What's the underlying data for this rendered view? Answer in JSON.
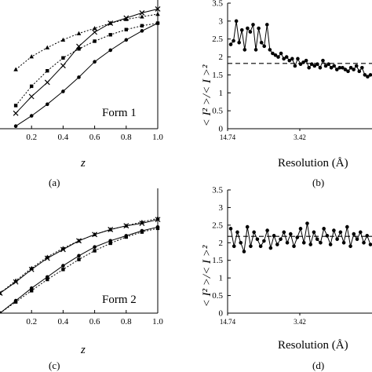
{
  "charts": {
    "a": {
      "panel_label": "(a)",
      "form_label": "Form 1",
      "xlabel": "z",
      "x_ticks": [
        "0.2",
        "0.4",
        "0.6",
        "0.8",
        "1.0"
      ],
      "x_tick_values": [
        0.2,
        0.4,
        0.6,
        0.8,
        1.0
      ]
    },
    "b": {
      "panel_label": "(b)",
      "ylabel": "< I² >/< I >²",
      "xlabel": "Resolution (Å)",
      "x_ticks": [
        "14.74",
        "3.42"
      ],
      "y_ticks": [
        "3.5",
        "3",
        "2.5",
        "2",
        "1.5",
        "1",
        "0.5",
        "0"
      ],
      "y_tick_values": [
        3.5,
        3,
        2.5,
        2,
        1.5,
        1,
        0.5,
        0
      ]
    },
    "c": {
      "panel_label": "(c)",
      "form_label": "Form 2",
      "xlabel": "z",
      "x_ticks": [
        "0.2",
        "0.4",
        "0.6",
        "0.8",
        "1.0"
      ],
      "x_tick_values": [
        0.2,
        0.4,
        0.6,
        0.8,
        1.0
      ]
    },
    "d": {
      "panel_label": "(d)",
      "ylabel": "< I² >/< I >²",
      "xlabel": "Resolution (Å)",
      "x_ticks": [
        "14.74",
        "3.42"
      ],
      "y_ticks": [
        "3.5",
        "3",
        "2.5",
        "2",
        "1.5",
        "1",
        "0.5",
        "0"
      ],
      "y_tick_values": [
        3.5,
        3,
        2.5,
        2,
        1.5,
        1,
        0.5,
        0
      ]
    }
  },
  "chart_data": [
    {
      "id": "a",
      "type": "line",
      "xlabel": "z",
      "xlim": [
        0.0,
        1.0
      ],
      "ylim": [
        0.0,
        1.0
      ],
      "series": [
        {
          "style": "solid-x",
          "marker": "cross",
          "x": [
            0.1,
            0.2,
            0.3,
            0.4,
            0.5,
            0.6,
            0.7,
            0.8,
            0.9,
            1.0
          ],
          "y": [
            0.12,
            0.25,
            0.36,
            0.49,
            0.64,
            0.75,
            0.82,
            0.86,
            0.9,
            0.93
          ]
        },
        {
          "style": "dotted-triangle",
          "marker": "triangle",
          "x": [
            0.1,
            0.2,
            0.3,
            0.4,
            0.5,
            0.6,
            0.7,
            0.8,
            0.9,
            1.0
          ],
          "y": [
            0.46,
            0.56,
            0.63,
            0.69,
            0.74,
            0.78,
            0.82,
            0.85,
            0.87,
            0.89
          ]
        },
        {
          "style": "dotted-square",
          "marker": "square",
          "x": [
            0.1,
            0.2,
            0.3,
            0.4,
            0.5,
            0.6,
            0.7,
            0.8,
            0.9,
            1.0
          ],
          "y": [
            0.18,
            0.33,
            0.45,
            0.55,
            0.62,
            0.68,
            0.73,
            0.77,
            0.8,
            0.82
          ]
        },
        {
          "style": "solid-dot",
          "marker": "dot",
          "x": [
            0.1,
            0.2,
            0.3,
            0.4,
            0.5,
            0.6,
            0.7,
            0.8,
            0.9,
            1.0
          ],
          "y": [
            0.02,
            0.1,
            0.19,
            0.29,
            0.4,
            0.52,
            0.61,
            0.69,
            0.76,
            0.82
          ]
        }
      ]
    },
    {
      "id": "b",
      "type": "line",
      "xlabel": "Resolution (Å)",
      "ylabel": "< I² >/< I >²",
      "ylim": [
        0.0,
        3.5
      ],
      "reference_line": 1.82,
      "series": [
        {
          "style": "solid-dot",
          "marker": "dot",
          "y": [
            2.35,
            2.45,
            3.0,
            2.4,
            2.75,
            2.2,
            2.8,
            2.7,
            2.9,
            2.2,
            2.8,
            2.4,
            2.3,
            2.9,
            2.2,
            2.1,
            2.05,
            2.0,
            2.1,
            1.95,
            2.0,
            1.9,
            1.95,
            1.75,
            1.95,
            1.8,
            1.85,
            1.9,
            1.7,
            1.8,
            1.75,
            1.8,
            1.7,
            1.9,
            1.75,
            1.8,
            1.7,
            1.75,
            1.65,
            1.7,
            1.7,
            1.65,
            1.6,
            1.7,
            1.65,
            1.75,
            1.6,
            1.7,
            1.5,
            1.45,
            1.5
          ]
        }
      ]
    },
    {
      "id": "c",
      "type": "line",
      "xlabel": "z",
      "xlim": [
        0.0,
        1.0
      ],
      "ylim": [
        0.0,
        1.0
      ],
      "series": [
        {
          "style": "solid-x",
          "marker": "cross",
          "x": [
            0.0,
            0.1,
            0.2,
            0.3,
            0.4,
            0.5,
            0.6,
            0.7,
            0.8,
            0.9,
            1.0
          ],
          "y": [
            0.16,
            0.25,
            0.35,
            0.44,
            0.51,
            0.58,
            0.63,
            0.67,
            0.7,
            0.72,
            0.75
          ]
        },
        {
          "style": "dotted-triangle",
          "marker": "triangle",
          "x": [
            0.0,
            0.1,
            0.2,
            0.3,
            0.4,
            0.5,
            0.6,
            0.7,
            0.8,
            0.9,
            1.0
          ],
          "y": [
            0.16,
            0.26,
            0.36,
            0.45,
            0.52,
            0.58,
            0.63,
            0.67,
            0.7,
            0.73,
            0.76
          ]
        },
        {
          "style": "solid-dot",
          "marker": "dot",
          "x": [
            0.0,
            0.1,
            0.2,
            0.3,
            0.4,
            0.5,
            0.6,
            0.7,
            0.8,
            0.9,
            1.0
          ],
          "y": [
            0.0,
            0.1,
            0.2,
            0.29,
            0.38,
            0.46,
            0.53,
            0.58,
            0.62,
            0.66,
            0.69
          ]
        },
        {
          "style": "dotted-square",
          "marker": "square",
          "x": [
            0.0,
            0.1,
            0.2,
            0.3,
            0.4,
            0.5,
            0.6,
            0.7,
            0.8,
            0.9,
            1.0
          ],
          "y": [
            0.0,
            0.09,
            0.18,
            0.27,
            0.35,
            0.43,
            0.5,
            0.56,
            0.61,
            0.65,
            0.68
          ]
        }
      ]
    },
    {
      "id": "d",
      "type": "line",
      "xlabel": "Resolution (Å)",
      "ylabel": "< I² >/< I >²",
      "ylim": [
        0.0,
        3.5
      ],
      "reference_line": 2.18,
      "series": [
        {
          "style": "solid-dot",
          "marker": "dot",
          "y": [
            2.4,
            1.9,
            2.3,
            2.0,
            1.75,
            2.45,
            1.9,
            2.3,
            2.1,
            1.9,
            2.05,
            2.35,
            1.85,
            2.2,
            1.95,
            2.1,
            2.3,
            2.0,
            2.25,
            1.9,
            2.15,
            2.4,
            2.0,
            2.55,
            1.95,
            2.3,
            2.1,
            2.0,
            2.4,
            2.2,
            1.95,
            2.35,
            2.1,
            2.3,
            2.0,
            2.45,
            1.9,
            2.25,
            2.1,
            2.3,
            2.0,
            2.2,
            1.95
          ]
        }
      ]
    }
  ]
}
